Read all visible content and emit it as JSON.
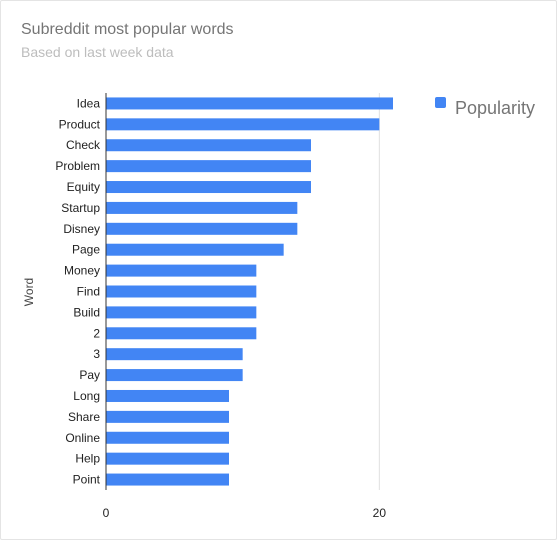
{
  "chart_data": {
    "type": "bar",
    "orientation": "horizontal",
    "title": "Subreddit most popular words",
    "subtitle": "Based on last week data",
    "ylabel": "Word",
    "categories": [
      "Idea",
      "Product",
      "Check",
      "Problem",
      "Equity",
      "Startup",
      "Disney",
      "Page",
      "Money",
      "Find",
      "Build",
      "2",
      "3",
      "Pay",
      "Long",
      "Share",
      "Online",
      "Help",
      "Point"
    ],
    "series": [
      {
        "name": "Popularity",
        "color": "#4285f4",
        "values": [
          21,
          20,
          15,
          15,
          15,
          14,
          14,
          13,
          11,
          11,
          11,
          11,
          10,
          10,
          9,
          9,
          9,
          9,
          9
        ]
      }
    ],
    "xlim": [
      0,
      30
    ],
    "xticks": [
      "0",
      "20"
    ],
    "grid": true,
    "legend_position": "top-right"
  }
}
